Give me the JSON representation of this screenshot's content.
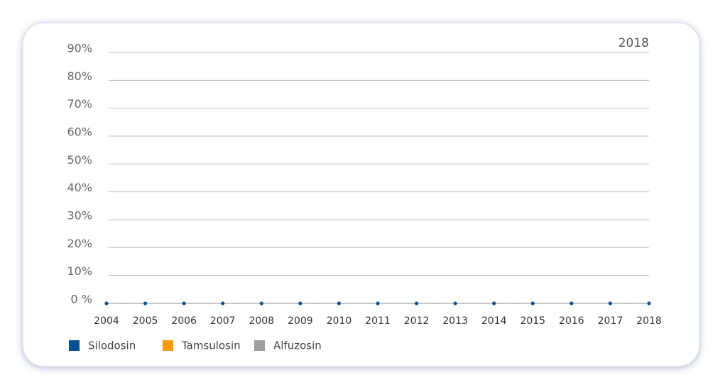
{
  "chart_data": {
    "type": "line",
    "annotation": "2018",
    "categories": [
      "2004",
      "2005",
      "2006",
      "2007",
      "2008",
      "2009",
      "2010",
      "2011",
      "2012",
      "2013",
      "2014",
      "2015",
      "2016",
      "2017",
      "2018"
    ],
    "series": [
      {
        "name": "Silodosin",
        "color": "#0b4f93",
        "values": [
          0,
          0,
          0,
          0,
          0,
          0,
          0,
          0,
          0,
          0,
          0,
          0,
          0,
          0,
          0
        ]
      },
      {
        "name": "Tamsulosin",
        "color": "#f39c12",
        "values": [
          0,
          0,
          0,
          0,
          0,
          0,
          0,
          0,
          0,
          0,
          0,
          0,
          0,
          0,
          0
        ]
      },
      {
        "name": "Alfuzosin",
        "color": "#9e9e9e",
        "values": [
          0,
          0,
          0,
          0,
          0,
          0,
          0,
          0,
          0,
          0,
          0,
          0,
          0,
          0,
          0
        ]
      }
    ],
    "ylim": [
      0,
      90
    ],
    "yticks": [
      {
        "value": 0,
        "label": "0 %"
      },
      {
        "value": 10,
        "label": "10%"
      },
      {
        "value": 20,
        "label": "20%"
      },
      {
        "value": 30,
        "label": "30%"
      },
      {
        "value": 40,
        "label": "40%"
      },
      {
        "value": 50,
        "label": "50%"
      },
      {
        "value": 60,
        "label": "60%"
      },
      {
        "value": 70,
        "label": "70%"
      },
      {
        "value": 80,
        "label": "80%"
      },
      {
        "value": 90,
        "label": "90%"
      }
    ],
    "grid": true
  }
}
